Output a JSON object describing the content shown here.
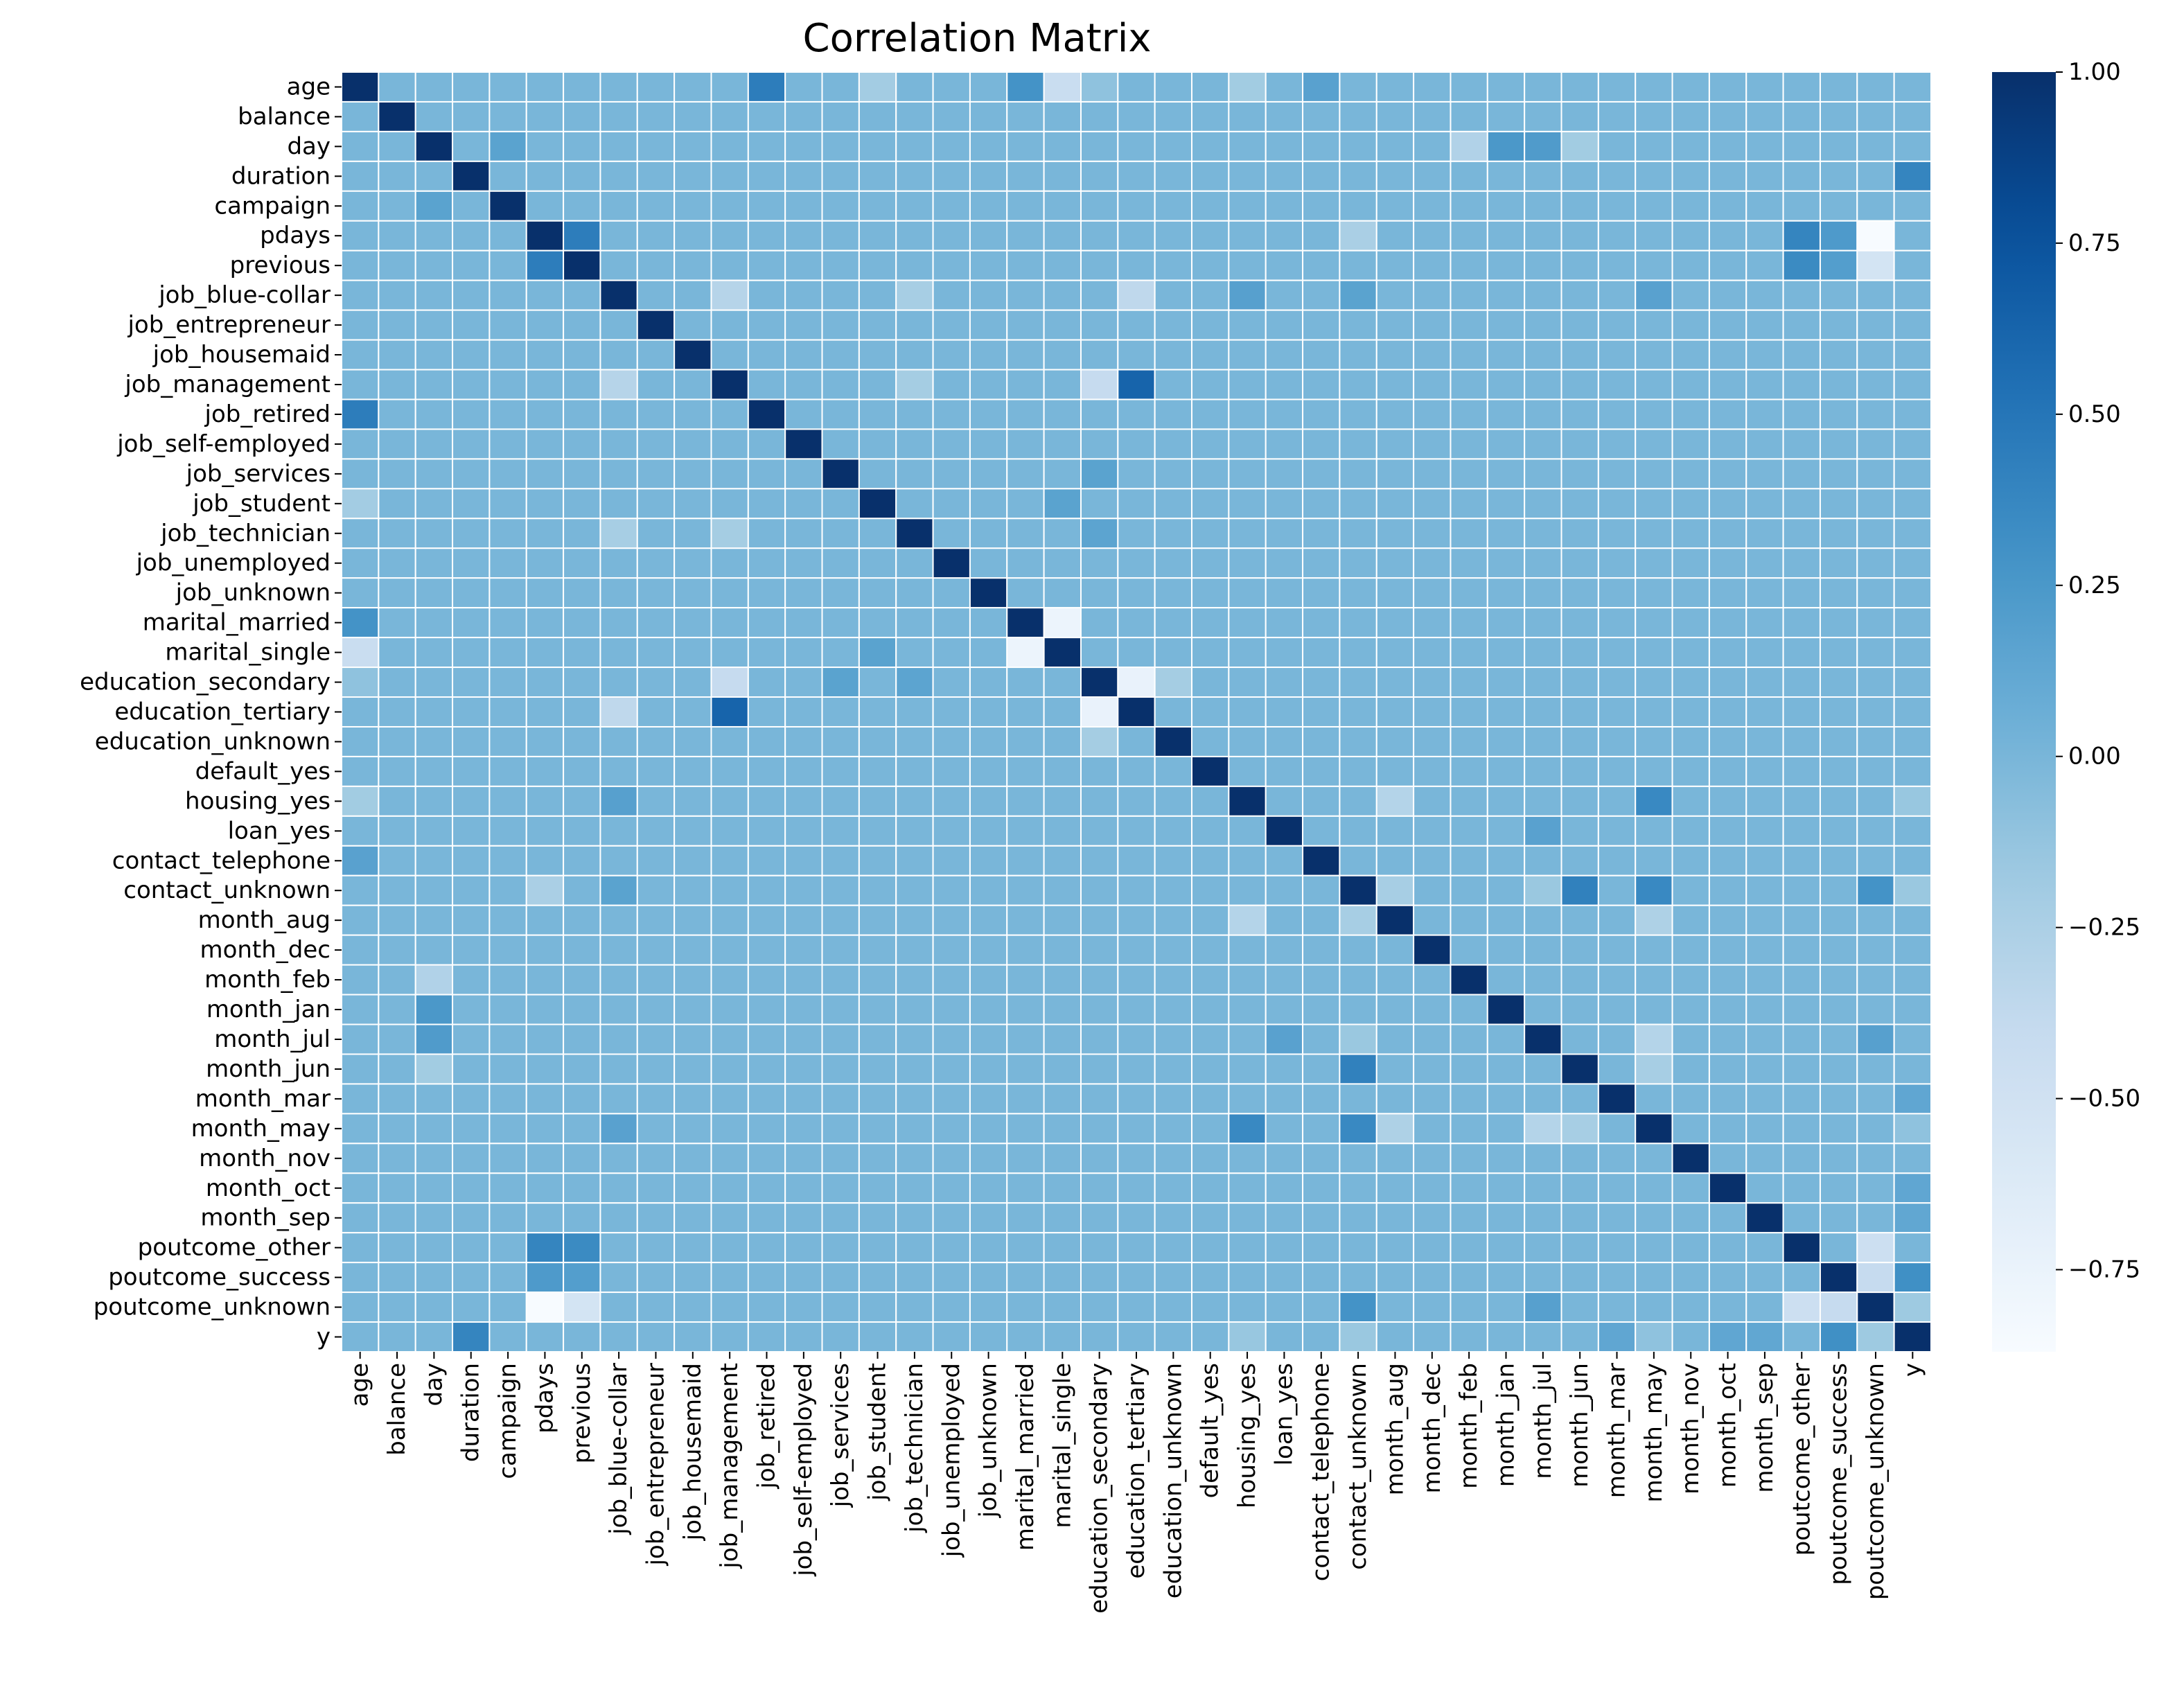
{
  "chart_data": {
    "type": "heatmap",
    "title": "Correlation Matrix",
    "labels": [
      "age",
      "balance",
      "day",
      "duration",
      "campaign",
      "pdays",
      "previous",
      "job_blue-collar",
      "job_entrepreneur",
      "job_housemaid",
      "job_management",
      "job_retired",
      "job_self-employed",
      "job_services",
      "job_student",
      "job_technician",
      "job_unemployed",
      "job_unknown",
      "marital_married",
      "marital_single",
      "education_secondary",
      "education_tertiary",
      "education_unknown",
      "default_yes",
      "housing_yes",
      "loan_yes",
      "contact_telephone",
      "contact_unknown",
      "month_aug",
      "month_dec",
      "month_feb",
      "month_jan",
      "month_jul",
      "month_jun",
      "month_mar",
      "month_may",
      "month_nov",
      "month_oct",
      "month_sep",
      "poutcome_other",
      "poutcome_success",
      "poutcome_unknown",
      "y"
    ],
    "colormap": "Blues",
    "vmin": -0.87,
    "vmax": 1.0,
    "colorbar_ticks": [
      1.0,
      0.75,
      0.5,
      0.25,
      0.0,
      -0.25,
      -0.5,
      -0.75
    ],
    "colorbar_tick_labels": [
      "1.00",
      "0.75",
      "0.50",
      "0.25",
      "0.00",
      "−0.25",
      "−0.50",
      "−0.75"
    ],
    "default_value": 0.0,
    "diagonal_value": 1.0,
    "notable_correlations": [
      {
        "a": "age",
        "b": "job_retired",
        "value": 0.45
      },
      {
        "a": "age",
        "b": "marital_married",
        "value": 0.29
      },
      {
        "a": "age",
        "b": "marital_single",
        "value": -0.43
      },
      {
        "a": "age",
        "b": "housing_yes",
        "value": -0.19
      },
      {
        "a": "age",
        "b": "contact_telephone",
        "value": 0.17
      },
      {
        "a": "age",
        "b": "job_student",
        "value": -0.2
      },
      {
        "a": "age",
        "b": "education_secondary",
        "value": -0.1
      },
      {
        "a": "day",
        "b": "month_jan",
        "value": 0.25
      },
      {
        "a": "day",
        "b": "month_jul",
        "value": 0.22
      },
      {
        "a": "day",
        "b": "month_feb",
        "value": -0.28
      },
      {
        "a": "day",
        "b": "month_jun",
        "value": -0.19
      },
      {
        "a": "day",
        "b": "campaign",
        "value": 0.16
      },
      {
        "a": "duration",
        "b": "y",
        "value": 0.39
      },
      {
        "a": "pdays",
        "b": "previous",
        "value": 0.45
      },
      {
        "a": "pdays",
        "b": "poutcome_other",
        "value": 0.39
      },
      {
        "a": "pdays",
        "b": "poutcome_success",
        "value": 0.23
      },
      {
        "a": "pdays",
        "b": "poutcome_unknown",
        "value": -0.87
      },
      {
        "a": "pdays",
        "b": "contact_unknown",
        "value": -0.24
      },
      {
        "a": "previous",
        "b": "poutcome_other",
        "value": 0.35
      },
      {
        "a": "previous",
        "b": "poutcome_success",
        "value": 0.2
      },
      {
        "a": "previous",
        "b": "poutcome_unknown",
        "value": -0.53
      },
      {
        "a": "job_blue-collar",
        "b": "job_management",
        "value": -0.31
      },
      {
        "a": "job_blue-collar",
        "b": "job_technician",
        "value": -0.22
      },
      {
        "a": "job_blue-collar",
        "b": "education_tertiary",
        "value": -0.36
      },
      {
        "a": "job_blue-collar",
        "b": "housing_yes",
        "value": 0.18
      },
      {
        "a": "job_blue-collar",
        "b": "contact_unknown",
        "value": 0.16
      },
      {
        "a": "job_blue-collar",
        "b": "month_may",
        "value": 0.17
      },
      {
        "a": "job_management",
        "b": "education_tertiary",
        "value": 0.63
      },
      {
        "a": "job_management",
        "b": "education_secondary",
        "value": -0.4
      },
      {
        "a": "job_management",
        "b": "job_technician",
        "value": -0.21
      },
      {
        "a": "job_services",
        "b": "education_secondary",
        "value": 0.16
      },
      {
        "a": "job_student",
        "b": "marital_single",
        "value": 0.16
      },
      {
        "a": "job_technician",
        "b": "education_secondary",
        "value": 0.15
      },
      {
        "a": "marital_married",
        "b": "marital_single",
        "value": -0.77
      },
      {
        "a": "education_secondary",
        "b": "education_tertiary",
        "value": -0.74
      },
      {
        "a": "education_secondary",
        "b": "education_unknown",
        "value": -0.21
      },
      {
        "a": "housing_yes",
        "b": "month_may",
        "value": 0.36
      },
      {
        "a": "housing_yes",
        "b": "month_aug",
        "value": -0.3
      },
      {
        "a": "contact_unknown",
        "b": "month_may",
        "value": 0.36
      },
      {
        "a": "contact_unknown",
        "b": "month_jun",
        "value": 0.42
      },
      {
        "a": "contact_unknown",
        "b": "poutcome_unknown",
        "value": 0.29
      },
      {
        "a": "contact_unknown",
        "b": "month_aug",
        "value": -0.22
      },
      {
        "a": "contact_unknown",
        "b": "month_jul",
        "value": -0.15
      },
      {
        "a": "month_aug",
        "b": "month_may",
        "value": -0.26
      },
      {
        "a": "month_jul",
        "b": "month_may",
        "value": -0.3
      },
      {
        "a": "month_jul",
        "b": "poutcome_unknown",
        "value": 0.18
      },
      {
        "a": "month_jun",
        "b": "month_may",
        "value": -0.22
      },
      {
        "a": "loan_yes",
        "b": "month_jul",
        "value": 0.17
      },
      {
        "a": "poutcome_other",
        "b": "poutcome_unknown",
        "value": -0.46
      },
      {
        "a": "poutcome_success",
        "b": "poutcome_unknown",
        "value": -0.4
      },
      {
        "a": "poutcome_success",
        "b": "y",
        "value": 0.31
      },
      {
        "a": "poutcome_unknown",
        "b": "y",
        "value": -0.17
      },
      {
        "a": "month_mar",
        "b": "y",
        "value": 0.13
      },
      {
        "a": "month_oct",
        "b": "y",
        "value": 0.13
      },
      {
        "a": "month_sep",
        "b": "y",
        "value": 0.12
      },
      {
        "a": "housing_yes",
        "b": "y",
        "value": -0.14
      },
      {
        "a": "contact_unknown",
        "b": "y",
        "value": -0.15
      },
      {
        "a": "month_may",
        "b": "y",
        "value": -0.1
      }
    ]
  }
}
